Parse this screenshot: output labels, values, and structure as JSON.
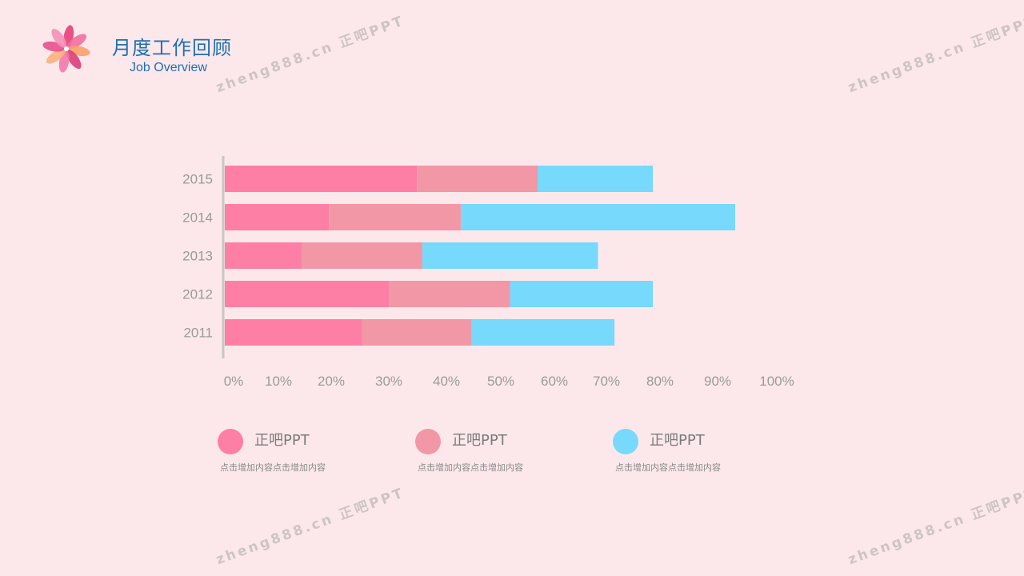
{
  "header": {
    "title": "月度工作回顾",
    "subtitle": "Job Overview"
  },
  "watermark": "zheng888.cn 正吧PPT",
  "colors": {
    "series1": "#fe7fa6",
    "series2": "#f297a6",
    "series3": "#77d9fc",
    "axis": "#c6c6c6",
    "tick_text": "#9a9a9a"
  },
  "chart_data": {
    "type": "bar",
    "orientation": "horizontal",
    "stacked": true,
    "categories": [
      "2015",
      "2014",
      "2013",
      "2012",
      "2011"
    ],
    "series": [
      {
        "name": "正吧PPT",
        "values": [
          35,
          19,
          14,
          30,
          25
        ]
      },
      {
        "name": "正吧PPT",
        "values": [
          22,
          24,
          22,
          22,
          20
        ]
      },
      {
        "name": "正吧PPT",
        "values": [
          21,
          50,
          32,
          26,
          26
        ]
      }
    ],
    "xticks": [
      "0%",
      "10%",
      "20%",
      "30%",
      "40%",
      "50%",
      "60%",
      "70%",
      "80%",
      "90%",
      "100%"
    ],
    "xlim": [
      0,
      100
    ],
    "grid": false,
    "legend_position": "bottom"
  },
  "legend": {
    "description": "点击增加内容点击增加内容"
  }
}
